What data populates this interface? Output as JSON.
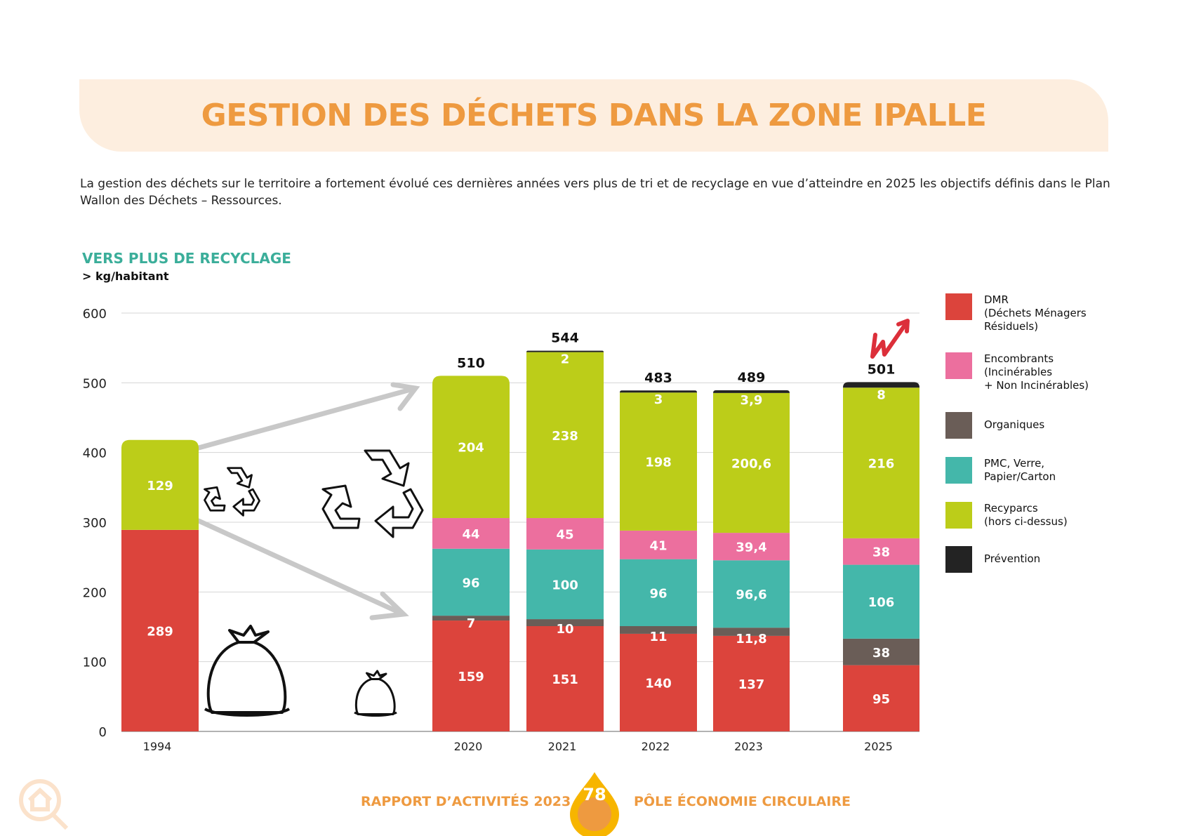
{
  "header": {
    "title": "GESTION DES DÉCHETS DANS LA ZONE IPALLE"
  },
  "intro": "La gestion des déchets sur le territoire a fortement évolué ces dernières années vers plus de tri et de recyclage en vue d’atteindre en 2025 les objectifs définis dans le Plan Wallon des Déchets – Ressources.",
  "chart_data": {
    "type": "bar",
    "stacked": true,
    "title": "VERS PLUS DE RECYCLAGE",
    "ylabel": "> kg/habitant",
    "ylim": [
      0,
      600
    ],
    "yticks": [
      0,
      100,
      200,
      300,
      400,
      500,
      600
    ],
    "grid": true,
    "legend_position": "right",
    "categories": [
      "1994",
      "2020",
      "2021",
      "2022",
      "2023",
      "2025"
    ],
    "totals": [
      "",
      "510",
      "544",
      "483",
      "489",
      "501"
    ],
    "series": [
      {
        "name": "DMR\n(Déchets Ménagers\nRésiduels)",
        "color": "#DC443C",
        "values": [
          289,
          159,
          151,
          140,
          137,
          95
        ]
      },
      {
        "name": "Organiques",
        "color": "#6A5D57",
        "values": [
          0,
          7,
          10,
          11,
          11.8,
          38
        ]
      },
      {
        "name": "PMC, Verre,\nPapier/Carton",
        "color": "#44B7AA",
        "values": [
          0,
          96,
          100,
          96,
          96.6,
          106
        ]
      },
      {
        "name": "Encombrants\n(Incinérables\n+ Non Incinérables)",
        "color": "#EC6F9E",
        "values": [
          0,
          44,
          45,
          41,
          39.4,
          38
        ]
      },
      {
        "name": "Recyparcs\n(hors ci-dessus)",
        "color": "#BCCD19",
        "values": [
          129,
          204,
          238,
          198,
          200.6,
          216
        ]
      },
      {
        "name": "Prévention",
        "color": "#232323",
        "values": [
          0,
          0,
          2,
          3,
          3.9,
          8
        ]
      }
    ],
    "legend_order": [
      0,
      3,
      1,
      2,
      4,
      5
    ]
  },
  "footer": {
    "left": "RAPPORT D’ACTIVITÉS 2023",
    "page": "78",
    "right": "PÔLE ÉCONOMIE CIRCULAIRE"
  },
  "colors": {
    "title": "#EE9A40",
    "banner": "#FDEEDF",
    "subtitle": "#3BAE9A"
  },
  "icons": [
    "recycle-icon",
    "trash-bag-icon",
    "arrow-icon",
    "w-logo-icon",
    "search-home-icon"
  ]
}
